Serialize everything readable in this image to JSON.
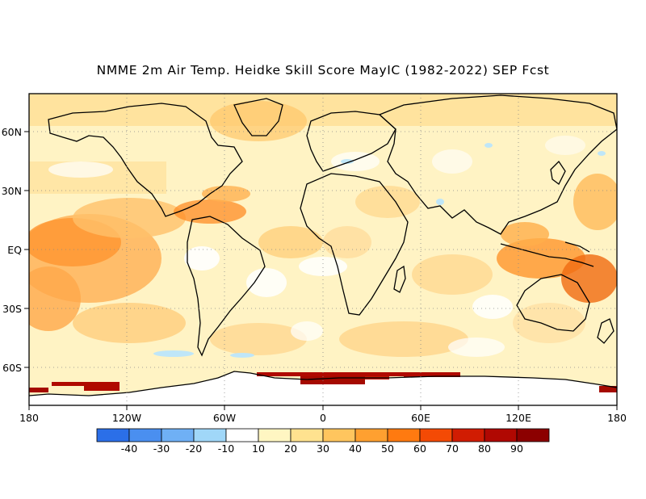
{
  "title": "NMME 2m Air Temp. Heidke Skill Score MayIC (1982-2022) SEP Fcst",
  "map": {
    "lat_labels": [
      "60N",
      "30N",
      "EQ",
      "30S",
      "60S"
    ],
    "lon_labels": [
      "180",
      "120W",
      "60W",
      "0",
      "60E",
      "120E",
      "180"
    ],
    "grid_lines": "dotted"
  },
  "colorbar": {
    "labels": [
      "-40",
      "-30",
      "-20",
      "-10",
      "10",
      "20",
      "30",
      "40",
      "50",
      "60",
      "70",
      "80",
      "90"
    ],
    "colors": [
      "#2b6fe8",
      "#4a8ff0",
      "#6fb0f5",
      "#a0d7f8",
      "#ffffff",
      "#fff6c2",
      "#ffe28f",
      "#ffc55e",
      "#ffa030",
      "#ff7a10",
      "#f44a05",
      "#d11c02",
      "#b00802",
      "#8c0000"
    ]
  }
}
